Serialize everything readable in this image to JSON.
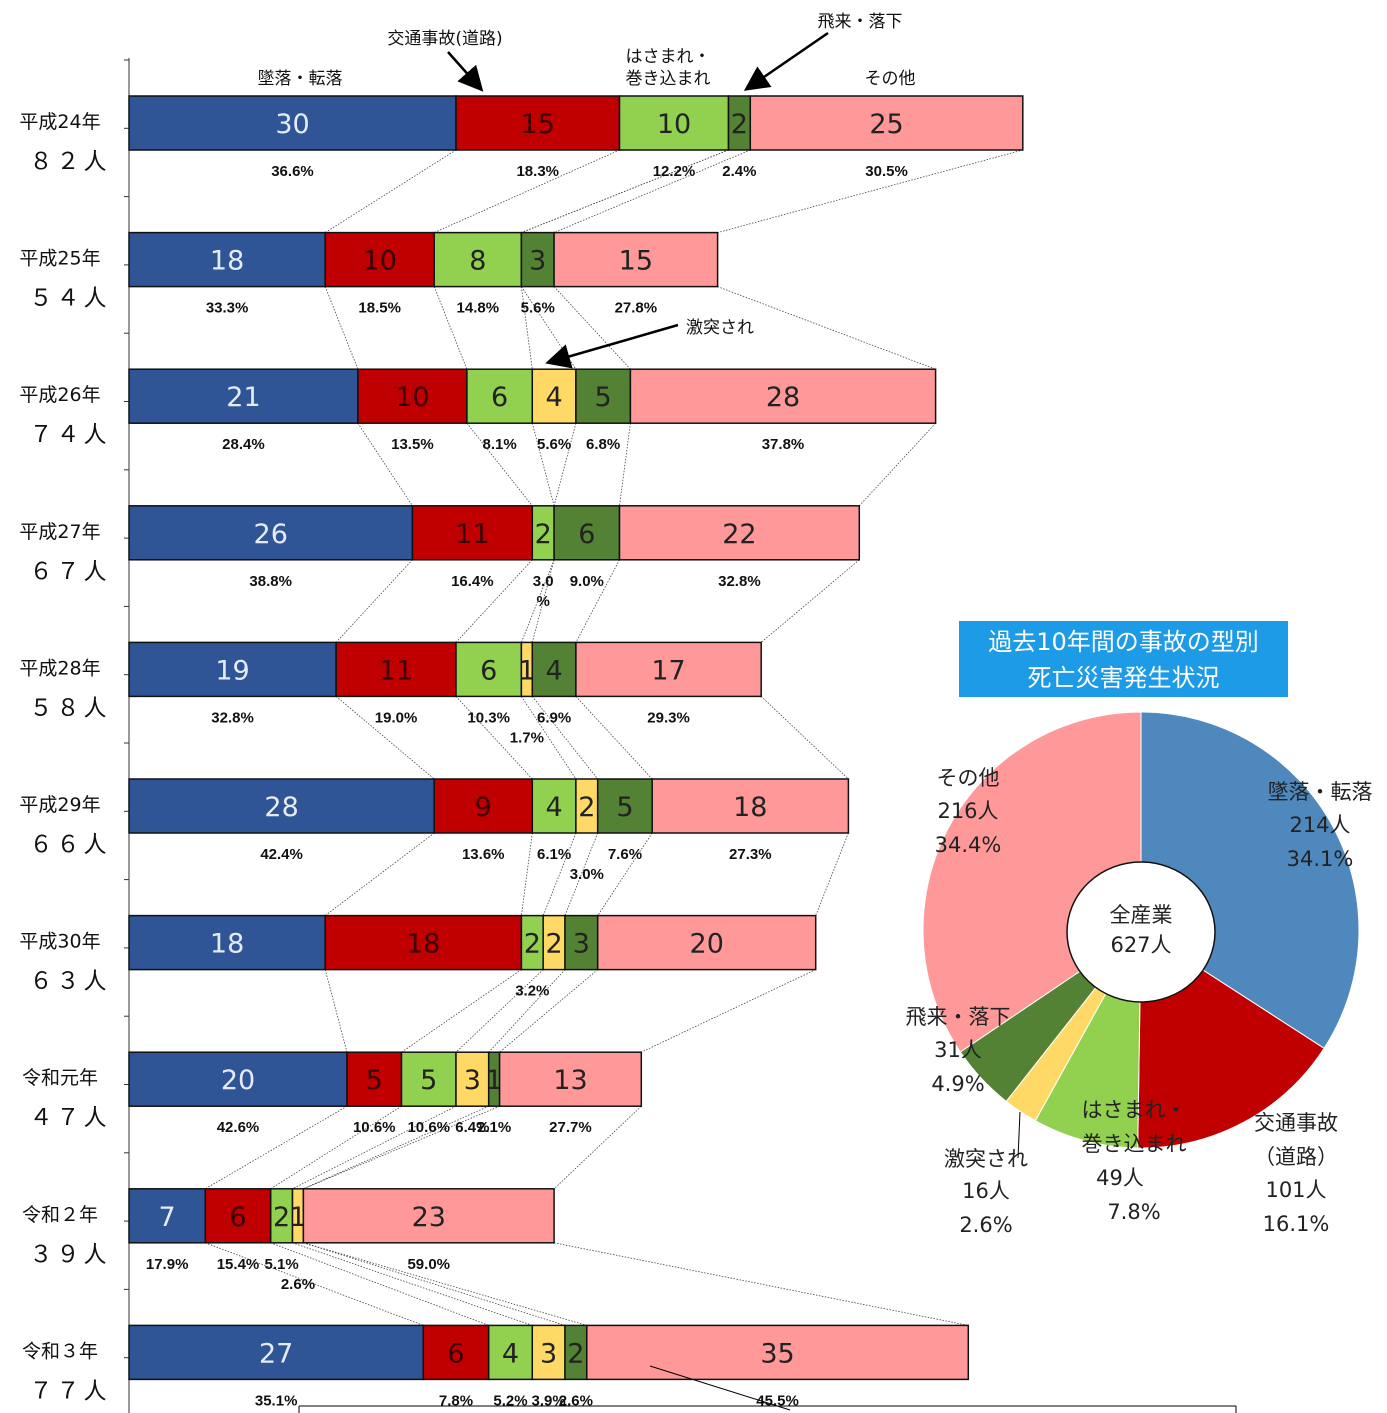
{
  "chart_data": [
    {
      "type": "bar",
      "subtype": "stacked-horizontal",
      "categories": [
        "墜落・転落",
        "交通事故(道路)",
        "はさまれ・巻き込まれ",
        "激突され",
        "飛来・落下",
        "その他"
      ],
      "category_labels": {
        "fall": "墜落・転落",
        "traffic": "交通事故(道路)",
        "caught_line1": "はさまれ・",
        "caught_line2": "巻き込まれ",
        "struck": "激突され",
        "flying": "飛来・落下",
        "other": "その他"
      },
      "colors": [
        "#2f5597",
        "#c00000",
        "#92d050",
        "#ffd966",
        "#548235",
        "#ff9999"
      ],
      "rows": [
        {
          "year": "平成24年",
          "total": "８２人",
          "values": [
            30,
            15,
            10,
            0,
            2,
            25
          ],
          "pcts": [
            "36.6%",
            "18.3%",
            "12.2%",
            "",
            "2.4%",
            "30.5%"
          ]
        },
        {
          "year": "平成25年",
          "total": "５４人",
          "values": [
            18,
            10,
            8,
            0,
            3,
            15
          ],
          "pcts": [
            "33.3%",
            "18.5%",
            "14.8%",
            "",
            "5.6%",
            "27.8%"
          ]
        },
        {
          "year": "平成26年",
          "total": "７４人",
          "values": [
            21,
            10,
            6,
            4,
            5,
            28
          ],
          "pcts": [
            "28.4%",
            "13.5%",
            "8.1%",
            "5.6%",
            "6.8%",
            "37.8%"
          ]
        },
        {
          "year": "平成27年",
          "total": "６７人",
          "values": [
            26,
            11,
            2,
            0,
            6,
            22
          ],
          "pcts": [
            "38.8%",
            "16.4%",
            "3.0\n%",
            "",
            "9.0%",
            "32.8%"
          ]
        },
        {
          "year": "平成28年",
          "total": "５８人",
          "values": [
            19,
            11,
            6,
            1,
            4,
            17
          ],
          "pcts": [
            "32.8%",
            "19.0%",
            "10.3%",
            "1.7%",
            "6.9%",
            "29.3%"
          ]
        },
        {
          "year": "平成29年",
          "total": "６６人",
          "values": [
            28,
            9,
            4,
            2,
            5,
            18
          ],
          "pcts": [
            "42.4%",
            "13.6%",
            "6.1%",
            "3.0%",
            "7.6%",
            "27.3%"
          ]
        },
        {
          "year": "平成30年",
          "total": "６３人",
          "values": [
            18,
            18,
            2,
            2,
            3,
            20
          ],
          "pcts": [
            "",
            "",
            "3.2%",
            "",
            "",
            ""
          ]
        },
        {
          "year": "令和元年",
          "total": "４７人",
          "values": [
            20,
            5,
            5,
            3,
            1,
            13
          ],
          "pcts": [
            "42.6%",
            "10.6%",
            "10.6%",
            "6.4%",
            "2.1%",
            "27.7%"
          ]
        },
        {
          "year": "令和２年",
          "total": "３９人",
          "values": [
            7,
            6,
            2,
            1,
            0,
            23
          ],
          "pcts": [
            "17.9%",
            "15.4%",
            "5.1%",
            "2.6%",
            "",
            "59.0%"
          ]
        },
        {
          "year": "令和３年",
          "total": "７７人",
          "values": [
            27,
            6,
            4,
            3,
            2,
            35
          ],
          "pcts": [
            "35.1%",
            "7.8%",
            "5.2%",
            "3.9%",
            "2.6%",
            "45.5%"
          ]
        }
      ],
      "xlim": [
        0,
        82
      ]
    },
    {
      "type": "pie",
      "title_line1": "過去10年間の事故の型別",
      "title_line2": "死亡災害発生状況",
      "center_line1": "全産業",
      "center_line2": "627人",
      "slices": [
        {
          "name": "墜落・転落",
          "value": 214,
          "count": "214人",
          "pct": "34.1%",
          "color": "#4f88bd"
        },
        {
          "name": "交通事故",
          "name2": "（道路）",
          "value": 101,
          "count": "101人",
          "pct": "16.1%",
          "color": "#c00000"
        },
        {
          "name": "はさまれ・",
          "name2": "巻き込まれ",
          "value": 49,
          "count": "49人",
          "pct": "7.8%",
          "color": "#92d050"
        },
        {
          "name": "激突され",
          "value": 16,
          "count": "16人",
          "pct": "2.6%",
          "color": "#ffd966"
        },
        {
          "name": "飛来・落下",
          "value": 31,
          "count": "31人",
          "pct": "4.9%",
          "color": "#548235"
        },
        {
          "name": "その他",
          "value": 216,
          "count": "216人",
          "pct": "34.4%",
          "color": "#ff9999"
        }
      ]
    }
  ]
}
